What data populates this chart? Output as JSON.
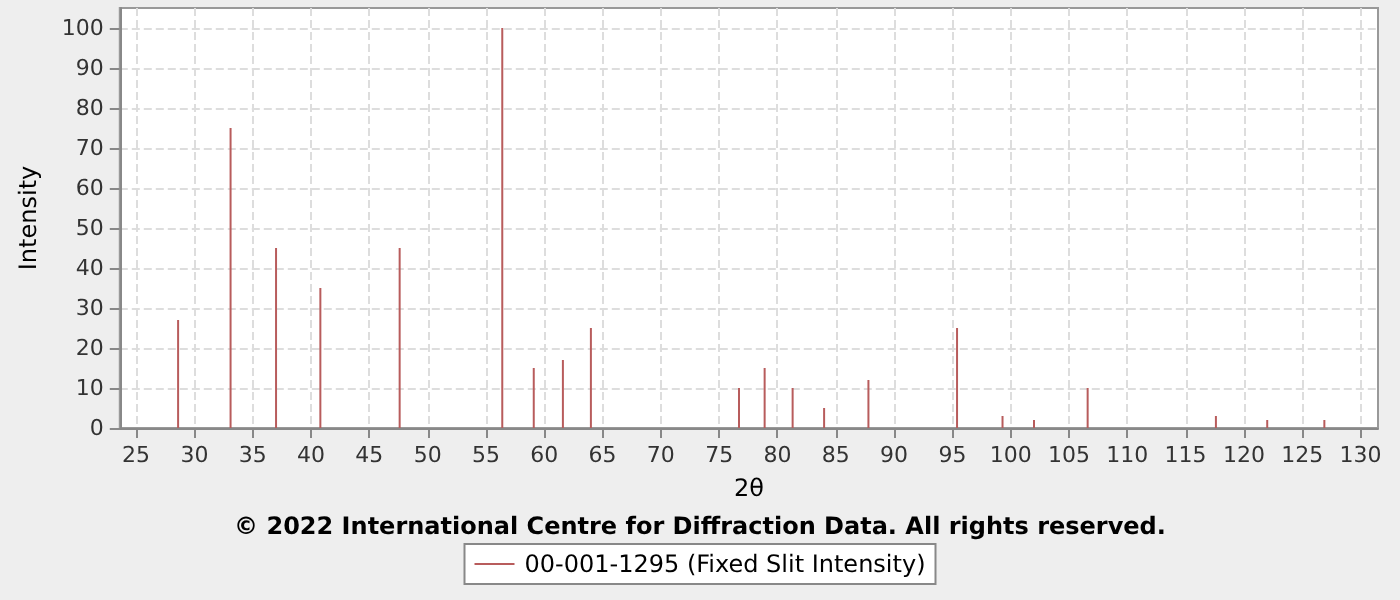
{
  "chart_data": {
    "type": "bar",
    "xlabel": "2θ",
    "ylabel": "Intensity",
    "annotations": [
      "© 2022 International Centre for Diffraction Data. All rights reserved."
    ],
    "x": [
      28.6,
      33.1,
      37.0,
      40.8,
      47.6,
      56.4,
      59.1,
      61.6,
      64.0,
      76.7,
      78.9,
      81.3,
      84.0,
      87.8,
      95.4,
      99.3,
      102.0,
      106.6,
      117.6,
      122.0,
      126.9
    ],
    "series": [
      {
        "name": "00-001-1295 (Fixed Slit Intensity)",
        "color": "#b85c5c",
        "values": [
          27,
          75,
          45,
          35,
          45,
          100,
          15,
          17,
          25,
          10,
          15,
          10,
          5,
          12,
          25,
          3,
          2,
          10,
          3,
          2,
          2
        ]
      }
    ],
    "xlim": [
      23.6,
      131.5
    ],
    "xticks": [
      25,
      30,
      35,
      40,
      45,
      50,
      55,
      60,
      65,
      70,
      75,
      80,
      85,
      90,
      95,
      100,
      105,
      110,
      115,
      120,
      125,
      130
    ],
    "ylim": [
      0,
      105
    ],
    "yticks": [
      0,
      10,
      20,
      30,
      40,
      50,
      60,
      70,
      80,
      90,
      100
    ],
    "grid": true,
    "legend": "bottom"
  }
}
